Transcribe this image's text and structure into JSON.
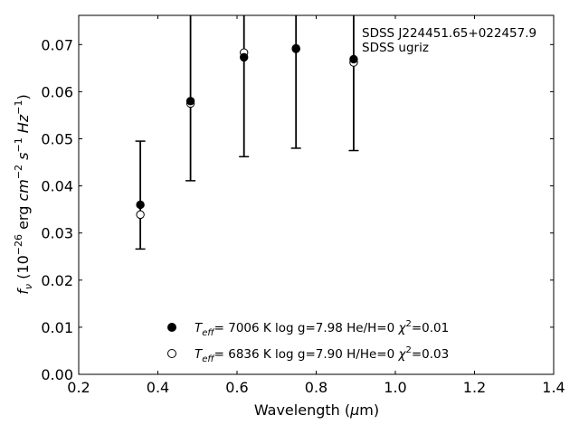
{
  "chart_data": {
    "type": "scatter",
    "title": "",
    "annotation_lines": [
      "SDSS J224451.65+022457.9",
      "SDSS ugriz"
    ],
    "xlabel": "Wavelength (μm)",
    "ylabel": "f_ν (10^-26 erg cm^-2 s^-1 Hz^-1)",
    "xlim": [
      0.2,
      1.4
    ],
    "ylim": [
      0.0,
      0.0762
    ],
    "x_ticks": [
      0.2,
      0.4,
      0.6,
      0.8,
      1.0,
      1.2,
      1.4
    ],
    "x_tick_labels": [
      "0.2",
      "0.4",
      "0.6",
      "0.8",
      "1.0",
      "1.2",
      "1.4"
    ],
    "y_ticks": [
      0.0,
      0.01,
      0.02,
      0.03,
      0.04,
      0.05,
      0.06,
      0.07
    ],
    "y_tick_labels": [
      "0.00",
      "0.01",
      "0.02",
      "0.03",
      "0.04",
      "0.05",
      "0.06",
      "0.07"
    ],
    "grid": false,
    "legend_position": "bottom-center",
    "series": [
      {
        "name": "T_eff= 7006 K log g=7.98 He/H=0 χ²=0.01",
        "marker": "filled-circle",
        "color": "#000000",
        "x": [
          0.3557,
          0.4825,
          0.6176,
          0.749,
          0.8947
        ],
        "y": [
          0.036,
          0.058,
          0.0673,
          0.0691,
          0.0669
        ]
      },
      {
        "name": "T_eff= 6836 K log g=7.90 H/He=0 χ²=0.03",
        "marker": "open-circle",
        "color": "#000000",
        "x": [
          0.3557,
          0.4825,
          0.6176,
          0.749,
          0.8947
        ],
        "y": [
          0.0339,
          0.0575,
          0.0683,
          0.0692,
          0.0662
        ]
      }
    ],
    "error_bars": {
      "x": [
        0.3557,
        0.4825,
        0.6176,
        0.749,
        0.8947
      ],
      "low": [
        0.0266,
        0.0411,
        0.0462,
        0.048,
        0.0475
      ],
      "high": [
        0.0495,
        0.0762,
        0.0762,
        0.0762,
        0.0762
      ]
    }
  }
}
